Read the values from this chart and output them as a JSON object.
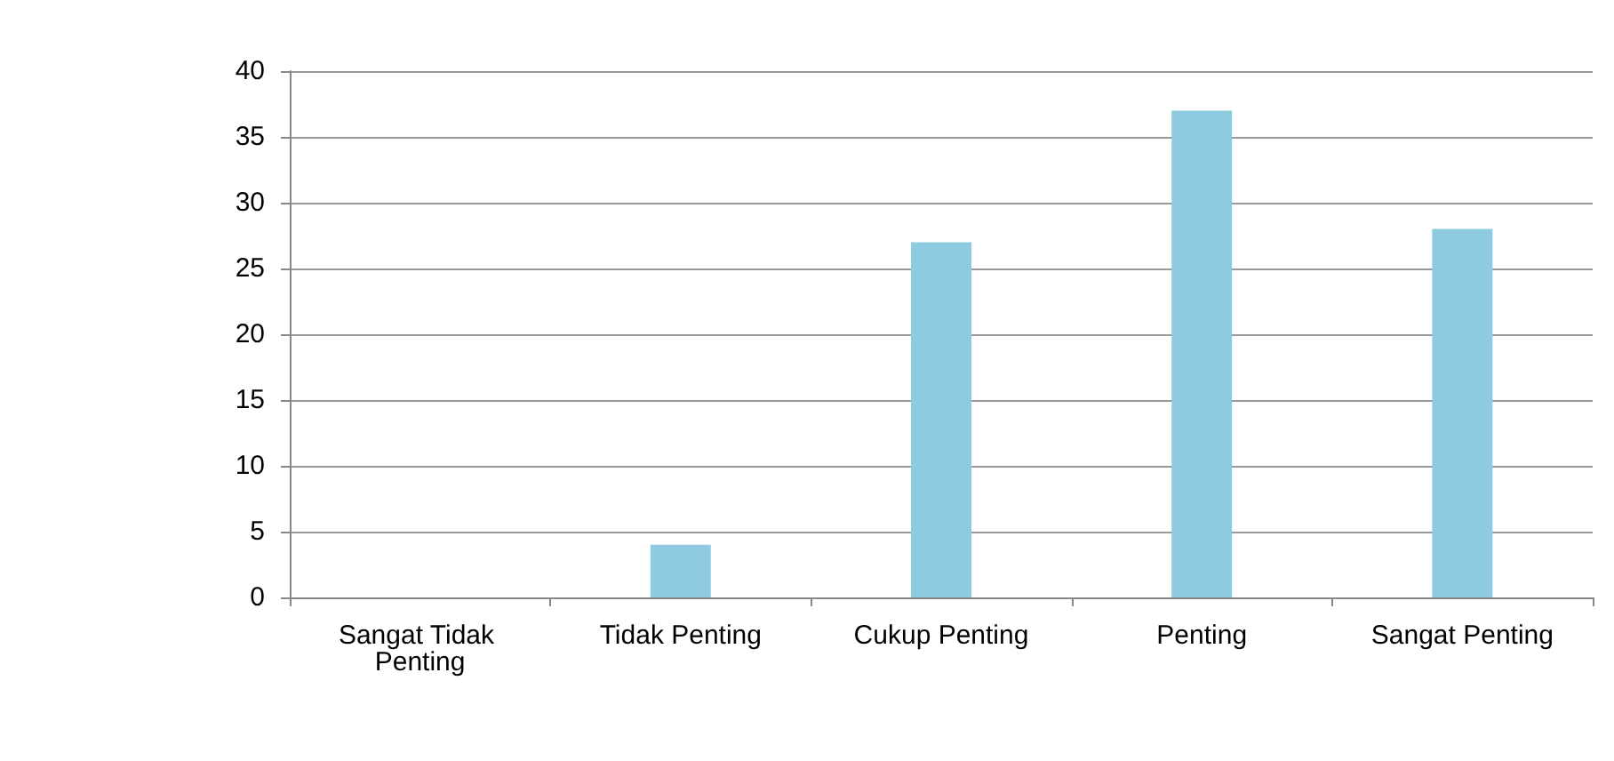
{
  "chart_data": {
    "type": "bar",
    "categories": [
      "Sangat Tidak Penting",
      "Tidak Penting",
      "Cukup Penting",
      "Penting",
      "Sangat Penting"
    ],
    "values": [
      0,
      4,
      27,
      37,
      28
    ],
    "color": "#8ecbe0",
    "ylim": [
      0,
      40
    ],
    "yticks": [
      0,
      5,
      10,
      15,
      20,
      25,
      30,
      35,
      40
    ],
    "grid": "y"
  }
}
